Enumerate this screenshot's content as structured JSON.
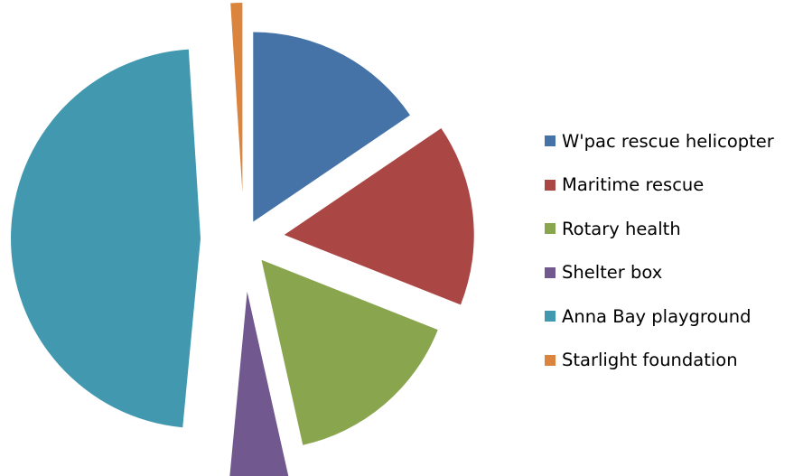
{
  "chart_data": {
    "type": "pie",
    "exploded": true,
    "title": "",
    "legend_position": "right",
    "categories": [
      "W'pac rescue helicopter",
      "Maritime rescue",
      "Rotary health",
      "Shelter box",
      "Anna Bay playground",
      "Starlight foundation"
    ],
    "values": [
      15.5,
      15.5,
      15.5,
      5,
      47.5,
      1
    ],
    "colors": [
      "#4572A7",
      "#AA4643",
      "#89A54E",
      "#71588F",
      "#4198AF",
      "#DB843D"
    ]
  }
}
